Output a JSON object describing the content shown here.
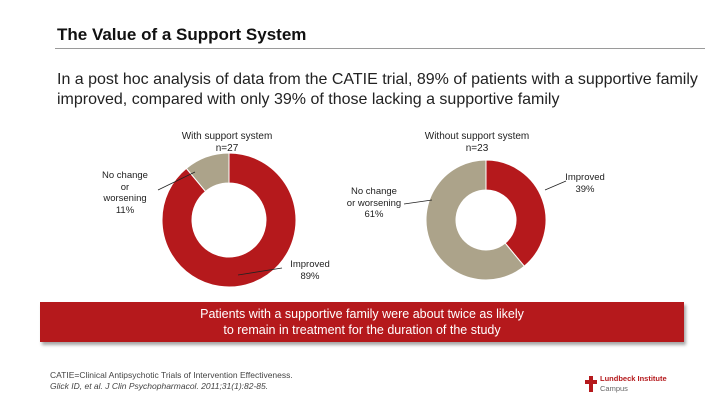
{
  "slide": {
    "title": "The Value of a Support System",
    "intro": "In a post hoc analysis of data from the CATIE trial, 89% of patients with a supportive family improved, compared with only 39% of those lacking a supportive family",
    "banner_line1": "Patients with a supportive family were about twice as likely",
    "banner_line2": "to remain in treatment for the duration of the study",
    "footnote_line1": "CATIE=Clinical Antipsychotic Trials of Intervention Effectiveness.",
    "footnote_line2": "Glick ID, et al. J Clin Psychopharmacol. 2011;31(1):82-85.",
    "logo_name": "Lundbeck Institute",
    "logo_sub": "Campus"
  },
  "colors": {
    "improved": "#b5191c",
    "no_change": "#aca38a",
    "banner": "#b5191c"
  },
  "chart_data": [
    {
      "type": "pie",
      "title": "With support system",
      "subtitle": "n=27",
      "categories": [
        "No change or worsening",
        "Improved"
      ],
      "values": [
        11,
        89
      ],
      "labels": [
        [
          "No change",
          "or",
          "worsening",
          "11%"
        ],
        [
          "Improved",
          "89%"
        ]
      ]
    },
    {
      "type": "pie",
      "title": "Without support system",
      "subtitle": "n=23",
      "categories": [
        "Improved",
        "No change or worsening"
      ],
      "values": [
        39,
        61
      ],
      "labels": [
        [
          "Improved",
          "39%"
        ],
        [
          "No change",
          "or worsening",
          "61%"
        ]
      ]
    }
  ]
}
